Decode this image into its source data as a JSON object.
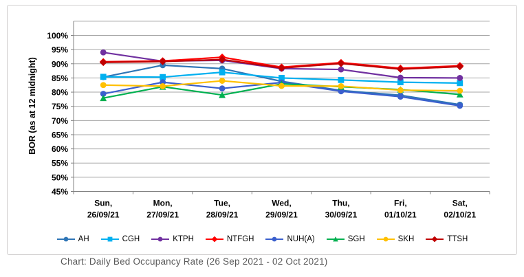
{
  "caption": "Chart: Daily Bed Occupancy Rate (26 Sep 2021 - 02 Oct 2021)",
  "chart_data": {
    "type": "line",
    "title": "",
    "xlabel": "",
    "ylabel": "BOR (as at 12  midnight)",
    "legend_position": "bottom",
    "grid": true,
    "grid_color": "#a6a6a6",
    "axis_color": "#808080",
    "border_color": "#d0cece",
    "caption_color": "#595959",
    "y_axis": {
      "min": 45,
      "max": 105,
      "step": 5,
      "unit": "%",
      "tick_labels": [
        "100%",
        "95%",
        "90%",
        "85%",
        "80%",
        "75%",
        "70%",
        "65%",
        "60%",
        "55%",
        "50%",
        "45%"
      ]
    },
    "x_axis": {
      "categories": [
        {
          "line1": "Sun,",
          "line2": "26/09/21"
        },
        {
          "line1": "Mon,",
          "line2": "27/09/21"
        },
        {
          "line1": "Tue,",
          "line2": "28/09/21"
        },
        {
          "line1": "Wed,",
          "line2": "29/09/21"
        },
        {
          "line1": "Thu,",
          "line2": "30/09/21"
        },
        {
          "line1": "Fri,",
          "line2": "01/10/21"
        },
        {
          "line1": "Sat,",
          "line2": "02/10/21"
        }
      ]
    },
    "series": [
      {
        "name": "AH",
        "color": "#2e75b6",
        "marker": "circle",
        "values": [
          85.3,
          89.5,
          88.3,
          83.8,
          80.6,
          78.9,
          75.6
        ]
      },
      {
        "name": "CGH",
        "color": "#00b0f0",
        "marker": "square",
        "values": [
          85.4,
          85.3,
          87.0,
          85.0,
          84.3,
          83.5,
          83.2
        ]
      },
      {
        "name": "KTPH",
        "color": "#7030a0",
        "marker": "circle",
        "values": [
          94.0,
          90.9,
          91.2,
          88.3,
          88.0,
          85.1,
          85.0
        ]
      },
      {
        "name": "NTFGH",
        "color": "#ff0000",
        "marker": "diamond",
        "values": [
          90.7,
          91.0,
          92.3,
          88.8,
          90.4,
          88.4,
          89.3
        ]
      },
      {
        "name": "NUH(A)",
        "color": "#3a5fcd",
        "marker": "circle",
        "values": [
          79.4,
          83.5,
          81.3,
          83.4,
          80.3,
          78.4,
          75.2
        ]
      },
      {
        "name": "SGH",
        "color": "#00b050",
        "marker": "triangle",
        "values": [
          77.9,
          81.9,
          79.0,
          82.9,
          81.9,
          80.9,
          79.2
        ]
      },
      {
        "name": "SKH",
        "color": "#ffc000",
        "marker": "circle",
        "values": [
          82.5,
          82.1,
          84.0,
          82.2,
          82.1,
          80.7,
          80.5
        ]
      },
      {
        "name": "TTSH",
        "color": "#c00000",
        "marker": "diamond",
        "values": [
          90.5,
          90.8,
          91.5,
          88.5,
          90.1,
          88.1,
          89.0
        ]
      }
    ]
  }
}
